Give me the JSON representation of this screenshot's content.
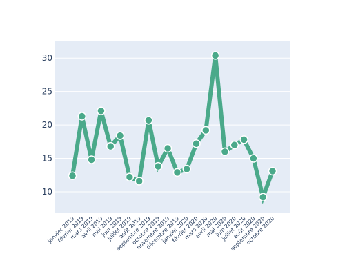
{
  "chart_data": {
    "type": "line",
    "categories": [
      "janvier 2019",
      "février 2019",
      "mars 2019",
      "avril 2019",
      "mai 2019",
      "juin 2019",
      "juillet 2019",
      "août 2019",
      "septembre 2019",
      "octobre 2019",
      "novembre 2019",
      "décembre 2019",
      "janvier 2020",
      "février 2020",
      "mars 2020",
      "avril 2020",
      "mai 2020",
      "juin 2020",
      "juillet 2020",
      "août 2020",
      "septembre 2020",
      "octobre 2020"
    ],
    "series": [
      {
        "values": [
          12.4,
          21.3,
          14.8,
          22.1,
          16.8,
          18.4,
          12.2,
          11.6,
          20.7,
          13.8,
          16.5,
          12.9,
          13.4,
          17.2,
          19.2,
          30.4,
          16.0,
          17.0,
          17.8,
          15.0,
          9.2,
          13.1
        ]
      }
    ],
    "yticks": [
      10,
      15,
      20,
      25,
      30
    ],
    "ylim": [
      6.9,
      32.5
    ],
    "title": "",
    "xlabel": "",
    "ylabel": "",
    "grid": true,
    "colors": {
      "line": "#4aa98a",
      "marker_edge": "#ffffff",
      "plot_bg": "#e5ecf6",
      "grid": "#ffffff",
      "text": "#2a3f5f"
    }
  }
}
